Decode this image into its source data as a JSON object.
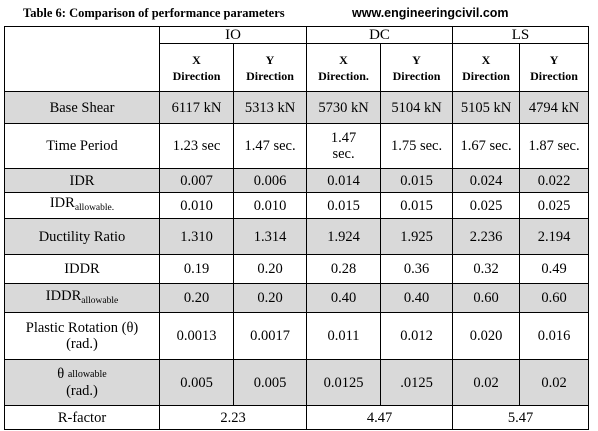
{
  "header": {
    "caption": "Table 6: Comparison of performance parameters",
    "website": "www.engineeringcivil.com"
  },
  "table": {
    "groups": [
      "IO",
      "DC",
      "LS"
    ],
    "directions": [
      {
        "axis": "X",
        "word": "Direction"
      },
      {
        "axis": "Y",
        "word": "Direction"
      },
      {
        "axis": "X",
        "word": "Direction."
      },
      {
        "axis": "Y",
        "word": "Direction"
      },
      {
        "axis": "X",
        "word": "Direction"
      },
      {
        "axis": "Y",
        "word": "Direction"
      }
    ],
    "rows": [
      {
        "label": "Base Shear",
        "values": [
          "6117 kN",
          "5313 kN",
          "5730 kN",
          "5104 kN",
          "5105 kN",
          "4794 kN"
        ]
      },
      {
        "label": "Time Period",
        "values": [
          "1.23 sec",
          "1.47 sec.",
          "1.47 sec.",
          "1.75 sec.",
          "1.67 sec.",
          "1.87 sec."
        ]
      },
      {
        "label": "IDR",
        "values": [
          "0.007",
          "0.006",
          "0.014",
          "0.015",
          "0.024",
          "0.022"
        ]
      },
      {
        "label": "IDR",
        "label_sub": "allowable.",
        "values": [
          "0.010",
          "0.010",
          "0.015",
          "0.015",
          "0.025",
          "0.025"
        ]
      },
      {
        "label": "Ductility Ratio",
        "values": [
          "1.310",
          "1.314",
          "1.924",
          "1.925",
          "2.236",
          "2.194"
        ]
      },
      {
        "label": "IDDR",
        "values": [
          "0.19",
          "0.20",
          "0.28",
          "0.36",
          "0.32",
          "0.49"
        ]
      },
      {
        "label": "IDDR",
        "label_sub": "allowable",
        "values": [
          "0.20",
          "0.20",
          "0.40",
          "0.40",
          "0.60",
          "0.60"
        ]
      },
      {
        "label": "Plastic Rotation (θ)",
        "label_line2": "(rad.)",
        "values": [
          "0.0013",
          "0.0017",
          "0.011",
          "0.012",
          "0.020",
          "0.016"
        ]
      },
      {
        "label": "θ",
        "label_sub": "allowable",
        "label_line2": "(rad.)",
        "values": [
          "0.005",
          "0.005",
          "0.0125",
          ".0125",
          "0.02",
          "0.02"
        ]
      }
    ],
    "rfactor": {
      "label": "R-factor",
      "values": [
        "2.23",
        "4.47",
        "5.47"
      ]
    }
  }
}
